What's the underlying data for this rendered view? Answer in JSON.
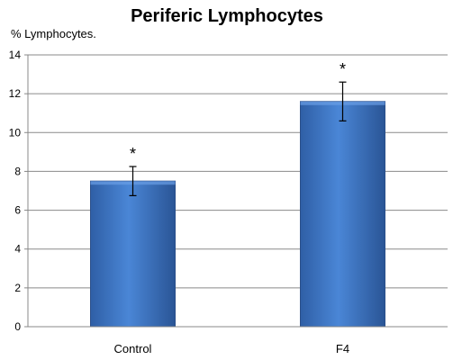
{
  "chart_data": {
    "type": "bar",
    "title": "Periferic Lymphocytes",
    "ylabel": "% Lymphocytes.",
    "xlabel": "",
    "categories": [
      "Control",
      "F4"
    ],
    "values": [
      7.5,
      11.6
    ],
    "error": [
      0.75,
      1.0
    ],
    "annotations": [
      "*",
      "*"
    ],
    "ylim": [
      0,
      14
    ],
    "yticks": [
      0,
      2,
      4,
      6,
      8,
      10,
      12,
      14
    ],
    "grid": true,
    "bar_color": "#3d74c4"
  }
}
